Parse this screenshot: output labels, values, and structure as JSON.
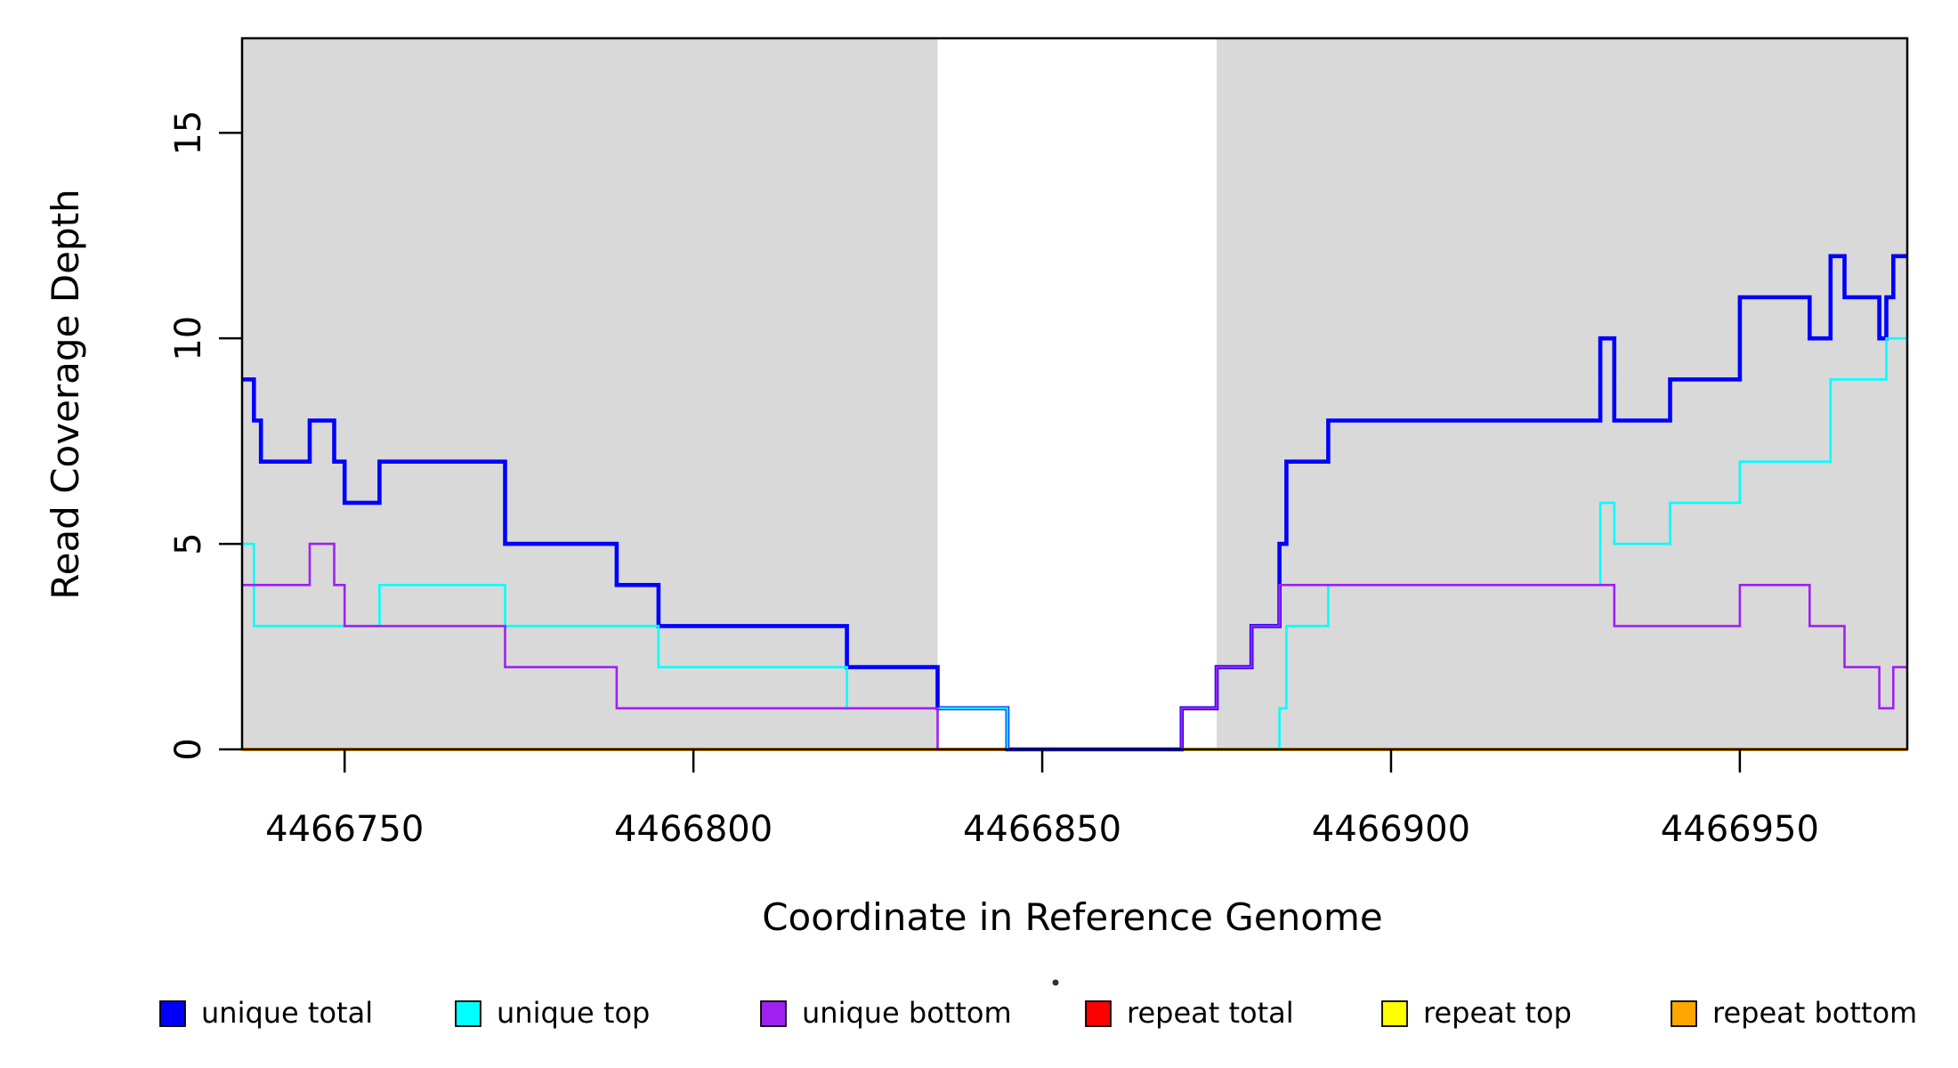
{
  "chart_data": {
    "type": "line",
    "subtype": "step",
    "title": "",
    "xlabel": "Coordinate in Reference Genome",
    "ylabel": "Read Coverage Depth",
    "xlim": [
      4466735.3,
      4466974.0
    ],
    "ylim": [
      0,
      17.3
    ],
    "grid": "off",
    "x_ticks": [
      {
        "value": 4466750,
        "label": "4466750"
      },
      {
        "value": 4466800,
        "label": "4466800"
      },
      {
        "value": 4466850,
        "label": "4466850"
      },
      {
        "value": 4466900,
        "label": "4466900"
      },
      {
        "value": 4466950,
        "label": "4466950"
      }
    ],
    "y_ticks": [
      {
        "value": 0,
        "label": "0"
      },
      {
        "value": 5,
        "label": "5"
      },
      {
        "value": 10,
        "label": "10"
      },
      {
        "value": 15,
        "label": "15"
      }
    ],
    "shaded_regions": [
      {
        "x0": 4466735.3,
        "x1": 4466835,
        "color": "#D9D9D9"
      },
      {
        "x0": 4466875,
        "x1": 4466974,
        "color": "#D9D9D9"
      }
    ],
    "series": [
      {
        "name": "repeat total",
        "color": "#FF0000",
        "width": 2.6,
        "steps": [
          [
            4466735.3,
            0
          ]
        ]
      },
      {
        "name": "repeat top",
        "color": "#FFFF00",
        "width": 2.6,
        "steps": [
          [
            4466735.3,
            0
          ]
        ]
      },
      {
        "name": "repeat bottom",
        "color": "#FFA500",
        "width": 4.0,
        "steps": [
          [
            4466735.3,
            0
          ]
        ]
      },
      {
        "name": "unique total",
        "color": "#0000FF",
        "width": 4.6,
        "steps": [
          [
            4466735.3,
            9
          ],
          [
            4466737,
            8
          ],
          [
            4466738,
            7
          ],
          [
            4466745,
            8
          ],
          [
            4466748.5,
            7
          ],
          [
            4466750,
            6
          ],
          [
            4466755,
            7
          ],
          [
            4466773,
            5
          ],
          [
            4466789,
            4
          ],
          [
            4466795,
            3
          ],
          [
            4466822,
            2
          ],
          [
            4466835,
            1
          ],
          [
            4466845,
            0
          ],
          [
            4466870,
            1
          ],
          [
            4466875,
            2
          ],
          [
            4466880,
            3
          ],
          [
            4466884,
            5
          ],
          [
            4466885,
            7
          ],
          [
            4466891,
            8
          ],
          [
            4466930,
            10
          ],
          [
            4466932,
            8
          ],
          [
            4466940,
            9
          ],
          [
            4466950,
            11
          ],
          [
            4466960,
            10
          ],
          [
            4466963,
            12
          ],
          [
            4466965,
            11
          ],
          [
            4466970,
            10
          ],
          [
            4466971,
            11
          ],
          [
            4466972,
            12
          ]
        ]
      },
      {
        "name": "unique top",
        "color": "#00FFFF",
        "width": 2.6,
        "steps": [
          [
            4466735.3,
            5
          ],
          [
            4466737,
            3
          ],
          [
            4466755,
            4
          ],
          [
            4466773,
            3
          ],
          [
            4466795,
            2
          ],
          [
            4466822,
            1
          ],
          [
            4466845,
            0
          ],
          [
            4466884,
            1
          ],
          [
            4466885,
            3
          ],
          [
            4466891,
            4
          ],
          [
            4466930,
            6
          ],
          [
            4466932,
            5
          ],
          [
            4466940,
            6
          ],
          [
            4466950,
            7
          ],
          [
            4466963,
            9
          ],
          [
            4466971,
            10
          ]
        ]
      },
      {
        "name": "unique bottom",
        "color": "#A020F0",
        "width": 2.6,
        "steps": [
          [
            4466735.3,
            4
          ],
          [
            4466745,
            5
          ],
          [
            4466748.5,
            4
          ],
          [
            4466750,
            3
          ],
          [
            4466773,
            2
          ],
          [
            4466789,
            1
          ],
          [
            4466835,
            0
          ],
          [
            4466870,
            1
          ],
          [
            4466875,
            2
          ],
          [
            4466880,
            3
          ],
          [
            4466884,
            4
          ],
          [
            4466932,
            3
          ],
          [
            4466950,
            4
          ],
          [
            4466960,
            3
          ],
          [
            4466965,
            2
          ],
          [
            4466970,
            1
          ],
          [
            4466972,
            2
          ]
        ]
      }
    ],
    "legend_position": "bottom"
  },
  "legend": {
    "items": [
      {
        "label": "unique total",
        "color": "#0000FF"
      },
      {
        "label": "unique top",
        "color": "#00FFFF"
      },
      {
        "label": "unique bottom",
        "color": "#A020F0"
      },
      {
        "label": "repeat total",
        "color": "#FF0000"
      },
      {
        "label": "repeat top",
        "color": "#FFFF00"
      },
      {
        "label": "repeat bottom",
        "color": "#FFA500"
      }
    ],
    "artifact_dot_color": "#333333"
  }
}
